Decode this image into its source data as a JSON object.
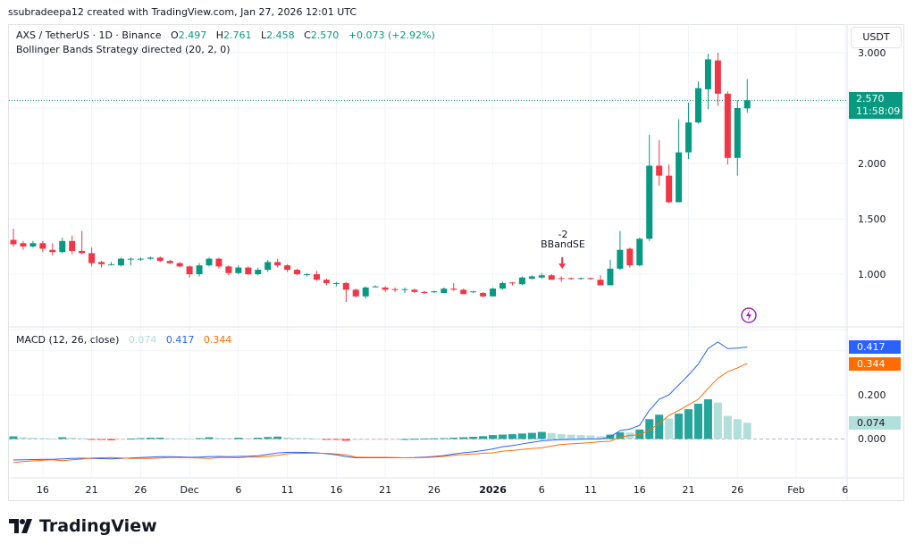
{
  "header": {
    "credit": "ssubradeepa12 created with TradingView.com, Jan 27, 2026 12:01 UTC"
  },
  "legend": {
    "symbol": "AXS / TetherUS · 1D · Binance",
    "open_label": "O",
    "open": "2.497",
    "high_label": "H",
    "high": "2.761",
    "low_label": "L",
    "low": "2.458",
    "close_label": "C",
    "close": "2.570",
    "change": "+0.073 (+2.92%)",
    "strategy": "Bollinger Bands Strategy directed (20, 2, 0)"
  },
  "price_axis": {
    "currency": "USDT",
    "ticks": [
      "3.000",
      "2.000",
      "1.500",
      "1.000"
    ],
    "last_price": "2.570",
    "countdown": "11:58:09"
  },
  "strategy_signal": {
    "qty": "-2",
    "label": "BBandSE"
  },
  "macd": {
    "title": "MACD (12, 26, close)",
    "histogram_value": "0.074",
    "macd_value": "0.417",
    "signal_value": "0.344",
    "ticks": [
      "0.200",
      "0.000"
    ]
  },
  "time_axis": {
    "labels": [
      "16",
      "21",
      "26",
      "Dec",
      "6",
      "11",
      "16",
      "21",
      "26",
      "2026",
      "6",
      "11",
      "16",
      "21",
      "26",
      "Feb",
      "6"
    ]
  },
  "brand": {
    "name": "TradingView"
  },
  "colors": {
    "up": "#089981",
    "down": "#f23645",
    "macd": "#2962ff",
    "signal": "#ff6d00",
    "hist_up_strong": "#26a69a",
    "hist_up_weak": "#b2dfdb",
    "hist_down_strong": "#ff5252",
    "hist_down_weak": "#ffcdd2"
  },
  "chart_data": {
    "type": "candlestick",
    "start_date": "2025-11-13",
    "interval": "1D",
    "ohlc": [
      [
        1.31,
        1.41,
        1.25,
        1.27
      ],
      [
        1.28,
        1.3,
        1.22,
        1.25
      ],
      [
        1.25,
        1.3,
        1.24,
        1.28
      ],
      [
        1.28,
        1.3,
        1.2,
        1.23
      ],
      [
        1.22,
        1.28,
        1.17,
        1.2
      ],
      [
        1.2,
        1.33,
        1.19,
        1.3
      ],
      [
        1.3,
        1.35,
        1.18,
        1.21
      ],
      [
        1.21,
        1.39,
        1.18,
        1.19
      ],
      [
        1.19,
        1.24,
        1.07,
        1.1
      ],
      [
        1.11,
        1.12,
        1.06,
        1.09
      ],
      [
        1.09,
        1.11,
        1.08,
        1.09
      ],
      [
        1.08,
        1.15,
        1.07,
        1.14
      ],
      [
        1.14,
        1.15,
        1.08,
        1.14
      ],
      [
        1.14,
        1.15,
        1.12,
        1.14
      ],
      [
        1.14,
        1.16,
        1.13,
        1.15
      ],
      [
        1.15,
        1.16,
        1.11,
        1.12
      ],
      [
        1.12,
        1.13,
        1.09,
        1.1
      ],
      [
        1.1,
        1.11,
        1.06,
        1.07
      ],
      [
        1.07,
        1.08,
        0.97,
        1.0
      ],
      [
        1.0,
        1.1,
        0.98,
        1.08
      ],
      [
        1.08,
        1.15,
        1.07,
        1.14
      ],
      [
        1.14,
        1.15,
        1.05,
        1.07
      ],
      [
        1.07,
        1.08,
        0.99,
        1.01
      ],
      [
        1.01,
        1.08,
        1.0,
        1.06
      ],
      [
        1.06,
        1.07,
        0.99,
        1.0
      ],
      [
        1.0,
        1.06,
        0.99,
        1.04
      ],
      [
        1.04,
        1.13,
        1.02,
        1.11
      ],
      [
        1.11,
        1.14,
        1.06,
        1.08
      ],
      [
        1.08,
        1.09,
        1.02,
        1.04
      ],
      [
        1.04,
        1.05,
        0.99,
        1.0
      ],
      [
        1.0,
        1.01,
        0.98,
        1.0
      ],
      [
        1.0,
        1.03,
        0.94,
        0.95
      ],
      [
        0.95,
        0.96,
        0.9,
        0.92
      ],
      [
        0.92,
        0.93,
        0.89,
        0.92
      ],
      [
        0.92,
        0.93,
        0.75,
        0.86
      ],
      [
        0.86,
        0.87,
        0.79,
        0.8
      ],
      [
        0.8,
        0.89,
        0.78,
        0.88
      ],
      [
        0.885,
        0.9,
        0.88,
        0.89
      ],
      [
        0.88,
        0.89,
        0.84,
        0.86
      ],
      [
        0.865,
        0.88,
        0.84,
        0.86
      ],
      [
        0.86,
        0.88,
        0.83,
        0.865
      ],
      [
        0.86,
        0.87,
        0.83,
        0.84
      ],
      [
        0.84,
        0.85,
        0.82,
        0.83
      ],
      [
        0.84,
        0.85,
        0.83,
        0.845
      ],
      [
        0.83,
        0.88,
        0.83,
        0.87
      ],
      [
        0.87,
        0.92,
        0.85,
        0.86
      ],
      [
        0.86,
        0.87,
        0.82,
        0.82
      ],
      [
        0.84,
        0.85,
        0.83,
        0.845
      ],
      [
        0.83,
        0.84,
        0.79,
        0.8
      ],
      [
        0.8,
        0.88,
        0.8,
        0.87
      ],
      [
        0.87,
        0.93,
        0.86,
        0.92
      ],
      [
        0.925,
        0.93,
        0.9,
        0.92
      ],
      [
        0.91,
        0.98,
        0.9,
        0.97
      ],
      [
        0.96,
        0.99,
        0.95,
        0.98
      ],
      [
        0.97,
        1.01,
        0.96,
        0.99
      ],
      [
        0.99,
        1.0,
        0.95,
        0.95
      ],
      [
        0.965,
        0.98,
        0.93,
        0.96
      ],
      [
        0.965,
        0.97,
        0.95,
        0.96
      ],
      [
        0.96,
        0.97,
        0.95,
        0.965
      ],
      [
        0.965,
        0.97,
        0.95,
        0.96
      ],
      [
        0.95,
        0.99,
        0.9,
        0.9
      ],
      [
        0.9,
        1.13,
        0.9,
        1.05
      ],
      [
        1.05,
        1.39,
        1.04,
        1.22
      ],
      [
        1.23,
        1.24,
        1.06,
        1.08
      ],
      [
        1.08,
        1.33,
        1.07,
        1.32
      ],
      [
        1.32,
        2.26,
        1.3,
        1.98
      ],
      [
        1.98,
        2.21,
        1.8,
        1.89
      ],
      [
        1.89,
        1.99,
        1.64,
        1.65
      ],
      [
        1.65,
        2.4,
        1.65,
        2.1
      ],
      [
        2.1,
        2.55,
        2.04,
        2.37
      ],
      [
        2.37,
        2.74,
        2.36,
        2.68
      ],
      [
        2.67,
        2.99,
        2.49,
        2.94
      ],
      [
        2.93,
        3.0,
        2.52,
        2.63
      ],
      [
        2.63,
        2.65,
        1.99,
        2.05
      ],
      [
        2.05,
        2.57,
        1.89,
        2.5
      ],
      [
        2.497,
        2.761,
        2.458,
        2.57
      ]
    ],
    "macd_line": [
      -0.095,
      -0.094,
      -0.093,
      -0.092,
      -0.092,
      -0.09,
      -0.088,
      -0.087,
      -0.088,
      -0.089,
      -0.09,
      -0.088,
      -0.086,
      -0.084,
      -0.082,
      -0.08,
      -0.08,
      -0.081,
      -0.083,
      -0.082,
      -0.08,
      -0.079,
      -0.08,
      -0.079,
      -0.078,
      -0.076,
      -0.07,
      -0.063,
      -0.06,
      -0.06,
      -0.061,
      -0.063,
      -0.067,
      -0.072,
      -0.08,
      -0.085,
      -0.085,
      -0.085,
      -0.085,
      -0.085,
      -0.085,
      -0.084,
      -0.082,
      -0.079,
      -0.075,
      -0.068,
      -0.062,
      -0.058,
      -0.052,
      -0.045,
      -0.035,
      -0.03,
      -0.022,
      -0.015,
      -0.008,
      -0.005,
      -0.003,
      -0.002,
      -0.001,
      0.0,
      0.0,
      0.01,
      0.038,
      0.045,
      0.062,
      0.13,
      0.18,
      0.2,
      0.245,
      0.29,
      0.34,
      0.41,
      0.44,
      0.41,
      0.412,
      0.417
    ],
    "histogram": [
      0.012,
      0.008,
      0.006,
      0.004,
      0.002,
      0.008,
      0.006,
      0.004,
      -0.002,
      -0.004,
      -0.006,
      -0.002,
      0.002,
      0.004,
      0.006,
      0.006,
      0.004,
      0.003,
      0.002,
      0.004,
      0.008,
      0.005,
      0.004,
      0.006,
      0.004,
      0.006,
      0.009,
      0.011,
      0.007,
      0.005,
      0.004,
      0.002,
      -0.002,
      -0.004,
      -0.008,
      -0.003,
      -0.002,
      -0.002,
      -0.002,
      -0.001,
      0.0,
      0.001,
      0.002,
      0.003,
      0.004,
      0.006,
      0.008,
      0.01,
      0.013,
      0.018,
      0.02,
      0.022,
      0.025,
      0.028,
      0.032,
      0.027,
      0.022,
      0.02,
      0.018,
      0.016,
      0.012,
      0.02,
      0.03,
      0.029,
      0.043,
      0.09,
      0.11,
      0.093,
      0.115,
      0.135,
      0.16,
      0.18,
      0.165,
      0.105,
      0.09,
      0.074
    ],
    "price_ylim": [
      0.6,
      3.4
    ],
    "macd_ylim": [
      -0.15,
      0.5
    ],
    "signal_marker": {
      "index": 56,
      "direction": "down"
    }
  }
}
